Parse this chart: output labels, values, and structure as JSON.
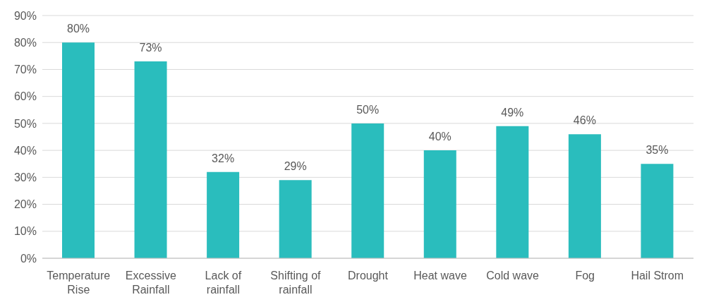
{
  "chart_data": {
    "type": "bar",
    "categories": [
      "Temperature Rise",
      "Excessive Rainfall",
      "Lack of rainfall",
      "Shifting of rainfall",
      "Drought",
      "Heat wave",
      "Cold wave",
      "Fog",
      "Hail Strom"
    ],
    "values": [
      80,
      73,
      32,
      29,
      50,
      40,
      49,
      46,
      35
    ],
    "value_labels": [
      "80%",
      "73%",
      "32%",
      "29%",
      "50%",
      "40%",
      "49%",
      "46%",
      "35%"
    ],
    "color": "#2abdbd",
    "ylim": [
      0,
      90
    ],
    "yticks": [
      {
        "value": 0,
        "label": "0%"
      },
      {
        "value": 10,
        "label": "10%"
      },
      {
        "value": 20,
        "label": "20%"
      },
      {
        "value": 30,
        "label": "30%"
      },
      {
        "value": 40,
        "label": "40%"
      },
      {
        "value": 50,
        "label": "50%"
      },
      {
        "value": 60,
        "label": "60%"
      },
      {
        "value": 70,
        "label": "70%"
      },
      {
        "value": 80,
        "label": "80%"
      },
      {
        "value": 90,
        "label": "90%"
      }
    ],
    "grid": "y"
  }
}
